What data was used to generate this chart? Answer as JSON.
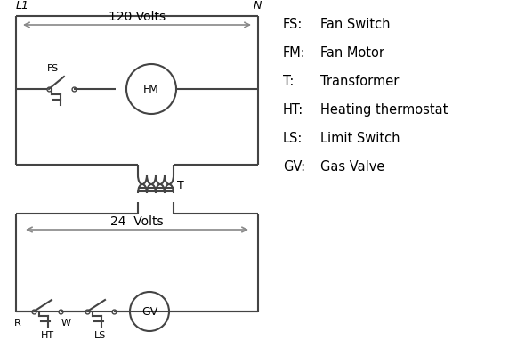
{
  "legend": {
    "FS": "Fan Switch",
    "FM": "Fan Motor",
    "T": "Transformer",
    "HT": "Heating thermostat",
    "LS": "Limit Switch",
    "GV": "Gas Valve"
  },
  "line_color": "#444444",
  "bg_color": "#ffffff",
  "text_color": "#000000",
  "arrow_color": "#888888",
  "line_width": 1.5,
  "figsize": [
    5.9,
    4.0
  ],
  "dpi": 100
}
